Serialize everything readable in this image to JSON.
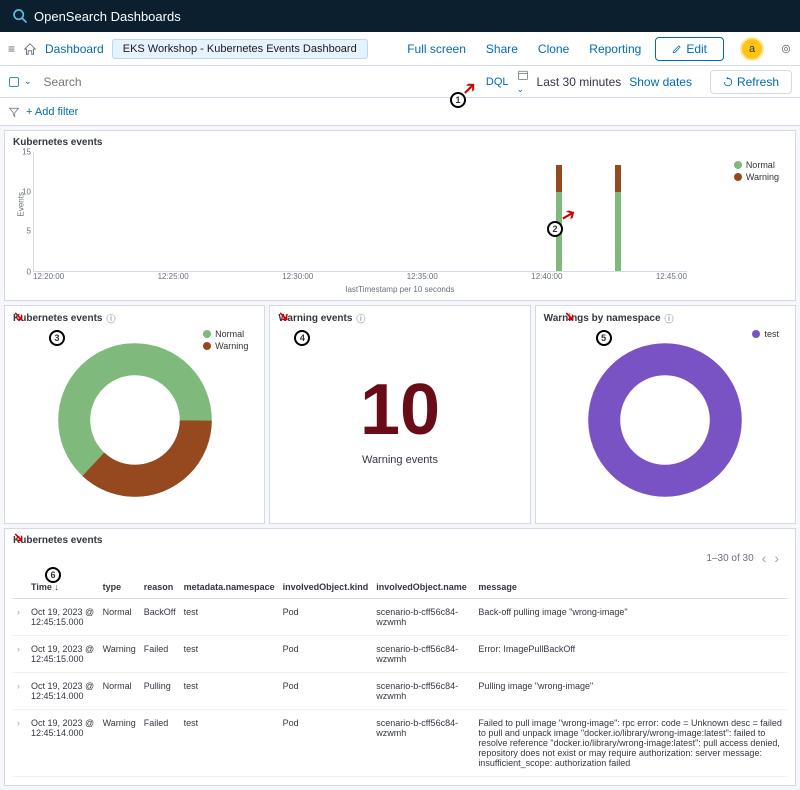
{
  "colors": {
    "normal": "#7fb97c",
    "warning": "#96481e",
    "test": "#7952c4",
    "metric": "#6a0c17",
    "link": "#006bb4"
  },
  "header": {
    "product": "OpenSearch Dashboards",
    "breadcrumb_link": "Dashboard",
    "breadcrumb_current": "EKS Workshop - Kubernetes Events Dashboard",
    "full_screen": "Full screen",
    "share": "Share",
    "clone": "Clone",
    "reporting": "Reporting",
    "edit": "Edit",
    "avatar_letter": "a"
  },
  "querybar": {
    "search_placeholder": "Search",
    "dql": "DQL",
    "time": "Last 30 minutes",
    "show_dates": "Show dates",
    "refresh": "Refresh",
    "add_filter": "+ Add filter"
  },
  "panels": {
    "timeline": {
      "title": "Kubernetes events",
      "y_label": "Events",
      "y_ticks": [
        "15",
        "10",
        "5",
        "0"
      ],
      "x_ticks": [
        "12:20:00",
        "12:25:00",
        "12:30:00",
        "12:35:00",
        "12:40:00",
        "12:45:00"
      ],
      "x_label": "lastTimestamp per 10 seconds",
      "legend": [
        {
          "label": "Normal",
          "color": "#7fb97c"
        },
        {
          "label": "Warning",
          "color": "#96481e"
        }
      ],
      "bars": [
        {
          "x_pct": 80,
          "segments": [
            {
              "color": "#7fb97c",
              "h_pct": 66
            },
            {
              "color": "#96481e",
              "h_pct": 22
            }
          ]
        },
        {
          "x_pct": 89,
          "segments": [
            {
              "color": "#7fb97c",
              "h_pct": 66
            },
            {
              "color": "#96481e",
              "h_pct": 22
            }
          ]
        }
      ]
    },
    "donut1": {
      "title": "Kubernetes events",
      "legend": [
        {
          "label": "Normal",
          "color": "#7fb97c"
        },
        {
          "label": "Warning",
          "color": "#96481e"
        }
      ],
      "primary_pct": 63
    },
    "metric": {
      "title": "Warning events",
      "value": "10",
      "label": "Warning events"
    },
    "donut2": {
      "title": "Warnings by namespace",
      "legend": [
        {
          "label": "test",
          "color": "#7952c4"
        }
      ]
    },
    "table": {
      "title": "Kubernetes events",
      "pagination": "1–30 of 30",
      "columns": [
        "Time",
        "type",
        "reason",
        "metadata.namespace",
        "involvedObject.kind",
        "involvedObject.name",
        "message"
      ],
      "rows": [
        [
          "Oct 19, 2023 @ 12:45:15.000",
          "Normal",
          "BackOff",
          "test",
          "Pod",
          "scenario-b-cff56c84-wzwmh",
          "Back-off pulling image \"wrong-image\""
        ],
        [
          "Oct 19, 2023 @ 12:45:15.000",
          "Warning",
          "Failed",
          "test",
          "Pod",
          "scenario-b-cff56c84-wzwmh",
          "Error: ImagePullBackOff"
        ],
        [
          "Oct 19, 2023 @ 12:45:14.000",
          "Normal",
          "Pulling",
          "test",
          "Pod",
          "scenario-b-cff56c84-wzwmh",
          "Pulling image \"wrong-image\""
        ],
        [
          "Oct 19, 2023 @ 12:45:14.000",
          "Warning",
          "Failed",
          "test",
          "Pod",
          "scenario-b-cff56c84-wzwmh",
          "Failed to pull image \"wrong-image\": rpc error: code = Unknown desc = failed to pull and unpack image \"docker.io/library/wrong-image:latest\": failed to resolve reference \"docker.io/library/wrong-image:latest\": pull access denied, repository does not exist or may require authorization: server message: insufficient_scope: authorization failed"
        ]
      ]
    }
  }
}
